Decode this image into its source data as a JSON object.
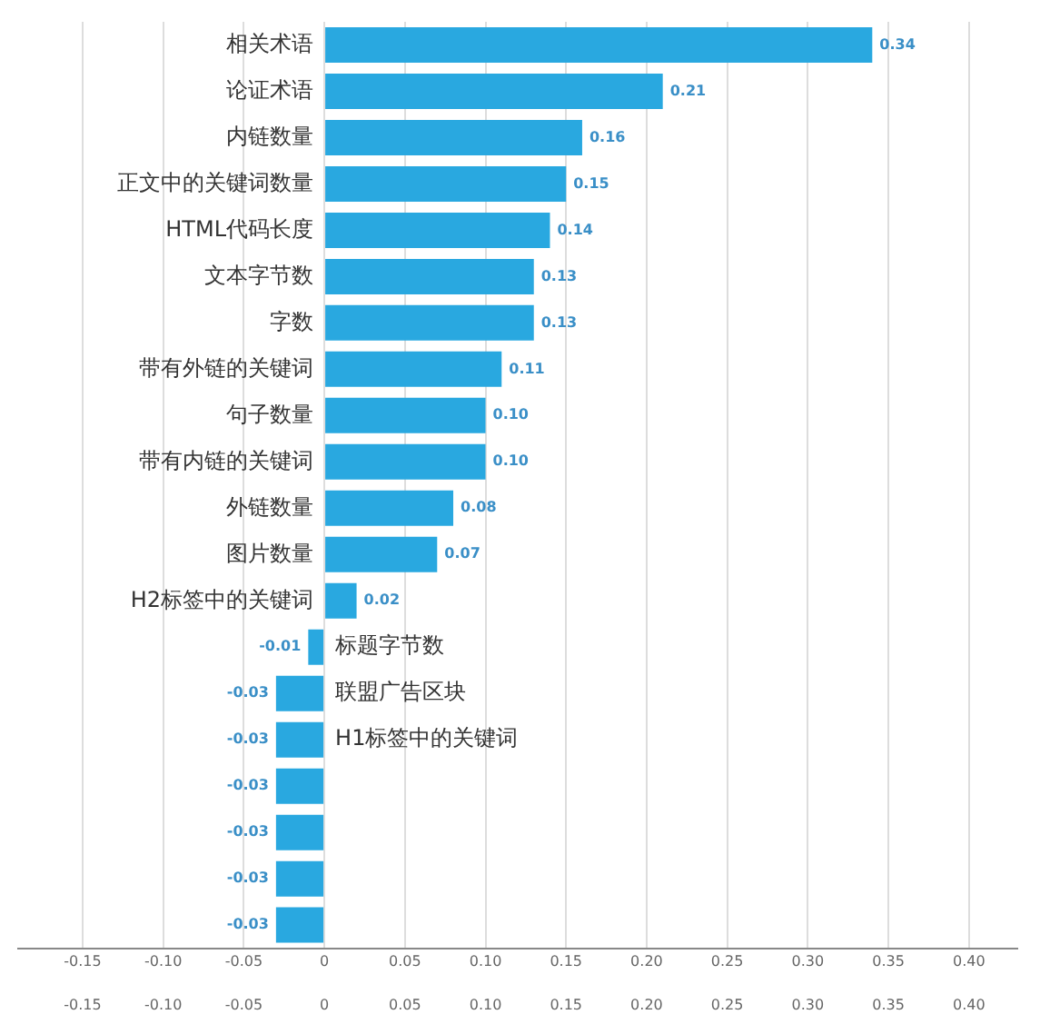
{
  "chart_data": {
    "type": "bar",
    "orientation": "horizontal",
    "categories": [
      "相关术语",
      "论证术语",
      "内链数量",
      "正文中的关键词数量",
      "HTML代码长度",
      "文本字节数",
      "字数",
      "带有外链的关键词",
      "句子数量",
      "带有内链的关键词",
      "外链数量",
      "图片数量",
      "H2标签中的关键词",
      "标题字节数",
      "联盟广告区块",
      "H1标签中的关键词",
      null,
      null,
      null,
      null
    ],
    "values": [
      0.34,
      0.21,
      0.16,
      0.15,
      0.14,
      0.13,
      0.13,
      0.11,
      0.1,
      0.1,
      0.08,
      0.07,
      0.02,
      -0.01,
      -0.03,
      -0.03,
      -0.03,
      -0.03,
      -0.03,
      -0.03
    ],
    "value_labels": [
      "0.34",
      "0.21",
      "0.16",
      "0.15",
      "0.14",
      "0.13",
      "0.13",
      "0.11",
      "0.10",
      "0.10",
      "0.08",
      "0.07",
      "0.02",
      "-0.01",
      "-0.03",
      "-0.03",
      "-0.03",
      "-0.03",
      "-0.03",
      "-0.03"
    ],
    "color": "#29a8e0",
    "xlim": [
      -0.19,
      0.43
    ],
    "xticks": [
      {
        "value": -0.15,
        "label": "-0.15"
      },
      {
        "value": -0.1,
        "label": "-0.10"
      },
      {
        "value": -0.05,
        "label": "-0.05"
      },
      {
        "value": 0,
        "label": "0"
      },
      {
        "value": 0.05,
        "label": "0.05"
      },
      {
        "value": 0.1,
        "label": "0.10"
      },
      {
        "value": 0.15,
        "label": "0.15"
      },
      {
        "value": 0.2,
        "label": "0.20"
      },
      {
        "value": 0.25,
        "label": "0.25"
      },
      {
        "value": 0.3,
        "label": "0.30"
      },
      {
        "value": 0.35,
        "label": "0.35"
      },
      {
        "value": 0.4,
        "label": "0.40"
      }
    ],
    "x2lim": [
      -0.19,
      0.43
    ],
    "x2ticks": [
      {
        "value": -0.15,
        "label": "-0.15"
      },
      {
        "value": -0.1,
        "label": "-0.10"
      },
      {
        "value": -0.05,
        "label": "-0.05"
      },
      {
        "value": 0,
        "label": "0"
      },
      {
        "value": 0.05,
        "label": "0.05"
      },
      {
        "value": 0.1,
        "label": "0.10"
      },
      {
        "value": 0.15,
        "label": "0.15"
      },
      {
        "value": 0.2,
        "label": "0.20"
      },
      {
        "value": 0.25,
        "label": "0.25"
      },
      {
        "value": 0.3,
        "label": "0.30"
      },
      {
        "value": 0.35,
        "label": "0.35"
      },
      {
        "value": 0.4,
        "label": "0.40"
      }
    ],
    "grid": "x",
    "legend": false
  }
}
